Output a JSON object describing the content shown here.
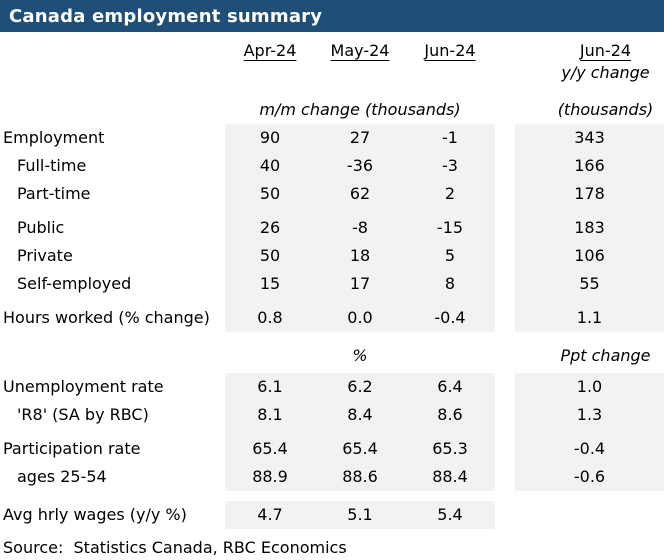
{
  "title": "Canada employment summary",
  "colors": {
    "header_bg": "#1F4E79",
    "shade": "#F2F2F2",
    "title_text": "#FFFFFF"
  },
  "header": {
    "months": [
      "Apr-24",
      "May-24",
      "Jun-24"
    ],
    "yoy_month": "Jun-24",
    "yoy_change_label": "y/y change",
    "mm_unit": "m/m change (thousands)",
    "yoy_unit": "(thousands)"
  },
  "blocks": [
    {
      "yoy_shaded": true,
      "css": "block-a",
      "rows": [
        {
          "label": "Employment",
          "indent": 0,
          "values": [
            "90",
            "27",
            "-1"
          ],
          "yoy": "343"
        },
        {
          "label": "Full-time",
          "indent": 1,
          "values": [
            "40",
            "-36",
            "-3"
          ],
          "yoy": "166"
        },
        {
          "label": "Part-time",
          "indent": 1,
          "values": [
            "50",
            "62",
            "2"
          ],
          "yoy": "178"
        },
        {
          "gap": true
        },
        {
          "label": "Public",
          "indent": 1,
          "values": [
            "26",
            "-8",
            "-15"
          ],
          "yoy": "183"
        },
        {
          "label": "Private",
          "indent": 1,
          "values": [
            "50",
            "18",
            "5"
          ],
          "yoy": "106"
        },
        {
          "label": "Self-employed",
          "indent": 1,
          "values": [
            "15",
            "17",
            "8"
          ],
          "yoy": "55"
        },
        {
          "gap": true
        },
        {
          "label": "Hours worked (% change)",
          "indent": 0,
          "values": [
            "0.8",
            "0.0",
            "-0.4"
          ],
          "yoy": "1.1"
        }
      ]
    },
    {
      "section_header": {
        "mm": "%",
        "yoy": "Ppt change"
      },
      "yoy_shaded": true,
      "css": "block-b",
      "rows": [
        {
          "label": "Unemployment rate",
          "indent": 0,
          "values": [
            "6.1",
            "6.2",
            "6.4"
          ],
          "yoy": "1.0"
        },
        {
          "label": "'R8' (SA by RBC)",
          "indent": 1,
          "values": [
            "8.1",
            "8.4",
            "8.6"
          ],
          "yoy": "1.3"
        },
        {
          "gap": true
        },
        {
          "label": "Participation rate",
          "indent": 0,
          "values": [
            "65.4",
            "65.4",
            "65.3"
          ],
          "yoy": "-0.4"
        },
        {
          "label": "ages 25-54",
          "indent": 1,
          "values": [
            "88.9",
            "88.6",
            "88.4"
          ],
          "yoy": "-0.6"
        }
      ]
    },
    {
      "yoy_shaded": false,
      "css": "block-c",
      "rows": [
        {
          "label": "Avg hrly wages (y/y %)",
          "indent": 0,
          "values": [
            "4.7",
            "5.1",
            "5.4"
          ],
          "yoy": ""
        }
      ]
    }
  ],
  "source": "Source:  Statistics Canada, RBC Economics",
  "chart_data": {
    "type": "table",
    "title": "Canada employment summary",
    "columns": [
      "Apr-24",
      "May-24",
      "Jun-24",
      "Jun-24 y/y change"
    ],
    "units": {
      "top_section": "m/m change (thousands), y/y change (thousands)",
      "rates_section": "%, Ppt change"
    },
    "rows": [
      {
        "label": "Employment",
        "Apr-24": 90,
        "May-24": 27,
        "Jun-24": -1,
        "yoy": 343
      },
      {
        "label": "Full-time",
        "Apr-24": 40,
        "May-24": -36,
        "Jun-24": -3,
        "yoy": 166
      },
      {
        "label": "Part-time",
        "Apr-24": 50,
        "May-24": 62,
        "Jun-24": 2,
        "yoy": 178
      },
      {
        "label": "Public",
        "Apr-24": 26,
        "May-24": -8,
        "Jun-24": -15,
        "yoy": 183
      },
      {
        "label": "Private",
        "Apr-24": 50,
        "May-24": 18,
        "Jun-24": 5,
        "yoy": 106
      },
      {
        "label": "Self-employed",
        "Apr-24": 15,
        "May-24": 17,
        "Jun-24": 8,
        "yoy": 55
      },
      {
        "label": "Hours worked (% change)",
        "Apr-24": 0.8,
        "May-24": 0.0,
        "Jun-24": -0.4,
        "yoy": 1.1
      },
      {
        "label": "Unemployment rate",
        "Apr-24": 6.1,
        "May-24": 6.2,
        "Jun-24": 6.4,
        "yoy": 1.0
      },
      {
        "label": "'R8' (SA by RBC)",
        "Apr-24": 8.1,
        "May-24": 8.4,
        "Jun-24": 8.6,
        "yoy": 1.3
      },
      {
        "label": "Participation rate",
        "Apr-24": 65.4,
        "May-24": 65.4,
        "Jun-24": 65.3,
        "yoy": -0.4
      },
      {
        "label": "ages 25-54",
        "Apr-24": 88.9,
        "May-24": 88.6,
        "Jun-24": 88.4,
        "yoy": -0.6
      },
      {
        "label": "Avg hrly wages (y/y %)",
        "Apr-24": 4.7,
        "May-24": 5.1,
        "Jun-24": 5.4,
        "yoy": null
      }
    ],
    "source": "Source: Statistics Canada, RBC Economics"
  }
}
